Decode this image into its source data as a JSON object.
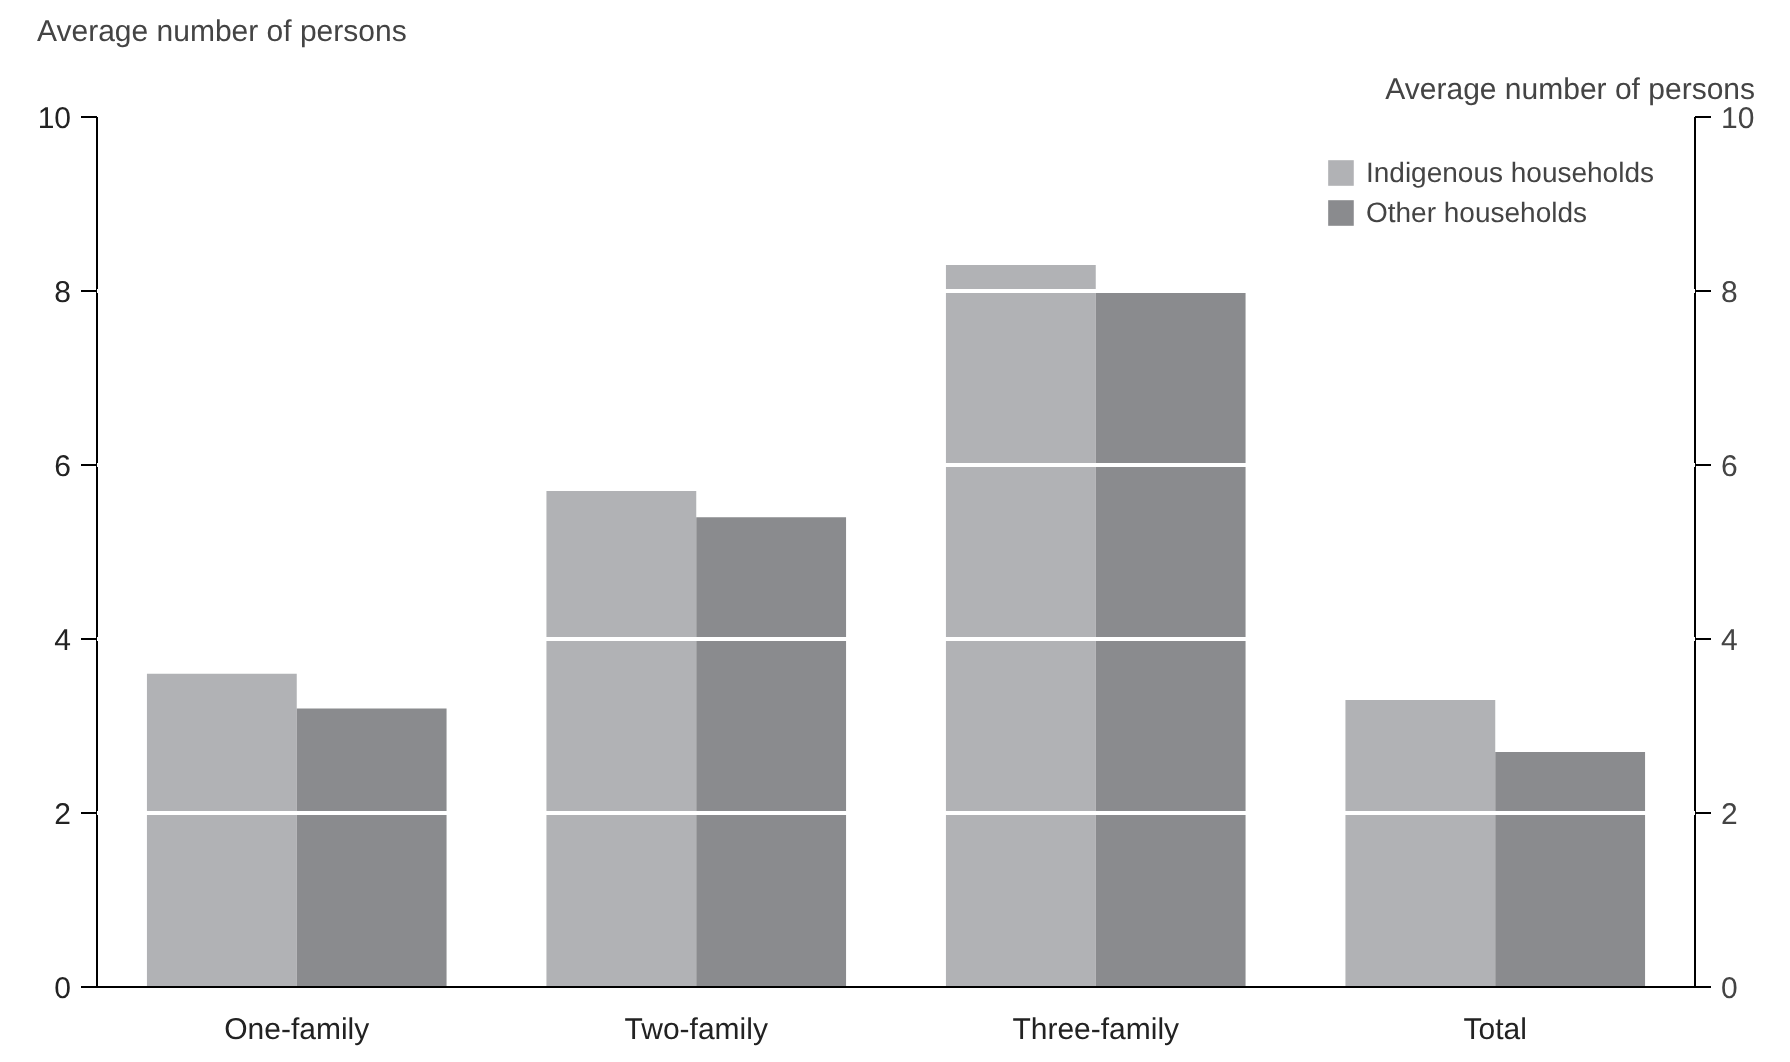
{
  "chart_data": {
    "type": "bar",
    "categories": [
      "One-family",
      "Two-family",
      "Three-family",
      "Total"
    ],
    "series": [
      {
        "name": "Indigenous households",
        "color": "#b1b2b5",
        "values": [
          3.6,
          5.7,
          8.3,
          3.3
        ]
      },
      {
        "name": "Other households",
        "color": "#8a8b8e",
        "values": [
          3.2,
          5.4,
          8.0,
          2.7
        ]
      }
    ],
    "ylabel": "Average number of persons",
    "y2label": "Average number of persons",
    "ylim": [
      0,
      10
    ],
    "yticks": [
      0,
      2,
      4,
      6,
      8,
      10
    ],
    "y2lim": [
      0,
      10
    ],
    "y2ticks": [
      0,
      2,
      4,
      6,
      8,
      10
    ],
    "grid": "y",
    "legend": "top right"
  }
}
